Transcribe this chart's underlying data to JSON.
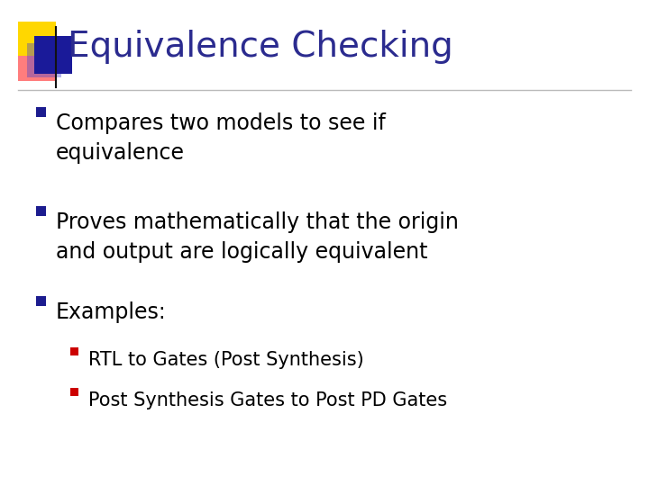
{
  "title": "Equivalence Checking",
  "title_color": "#2B2B8F",
  "title_fontsize": 28,
  "background_color": "#FFFFFF",
  "bullet_square_color": "#1C1C8F",
  "subbullet_square_color": "#CC0000",
  "bullet_fontsize": 17,
  "subbullet_fontsize": 15,
  "text_color": "#000000",
  "bullets": [
    "Compares two models to see if\nequivalence",
    "Proves mathematically that the origin\nand output are logically equivalent",
    "Examples:"
  ],
  "subbullets": [
    "RTL to Gates (Post Synthesis)",
    "Post Synthesis Gates to Post PD Gates"
  ],
  "separator_color": "#BBBBBB",
  "logo": {
    "yellow": "#FFD700",
    "pink": "#FF6666",
    "blue_dark": "#1A1A99",
    "blue_mid": "#4444CC"
  }
}
